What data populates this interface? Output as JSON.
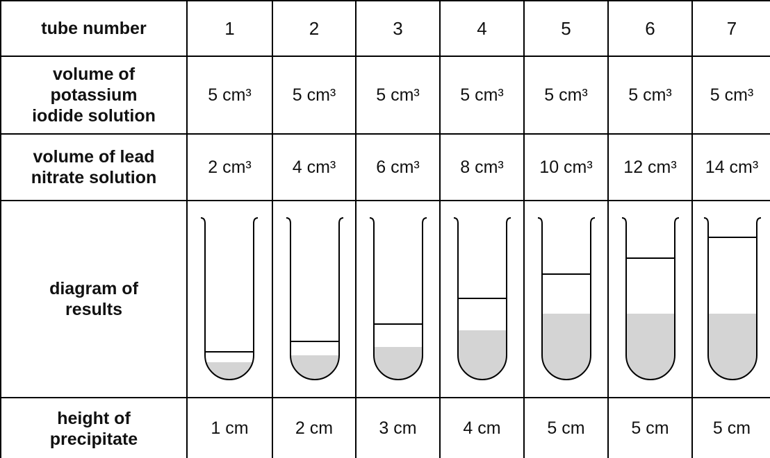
{
  "table": {
    "rows": [
      [
        [
          "tube number"
        ],
        "1",
        "2",
        "3",
        "4",
        "5",
        "6",
        "7"
      ],
      [
        [
          "volume of",
          "potassium",
          "iodide solution"
        ],
        "5 cm³",
        "5 cm³",
        "5 cm³",
        "5 cm³",
        "5 cm³",
        "5 cm³",
        "5 cm³"
      ],
      [
        [
          "volume of lead",
          "nitrate solution"
        ],
        "2 cm³",
        "4 cm³",
        "6 cm³",
        "8 cm³",
        "10 cm³",
        "12 cm³",
        "14 cm³"
      ],
      [
        [
          "diagram of",
          "results"
        ]
      ],
      [
        [
          "height of",
          "precipitate"
        ],
        "1 cm",
        "2 cm",
        "3 cm",
        "4 cm",
        "5 cm",
        "5 cm",
        "5 cm"
      ]
    ]
  }
}
